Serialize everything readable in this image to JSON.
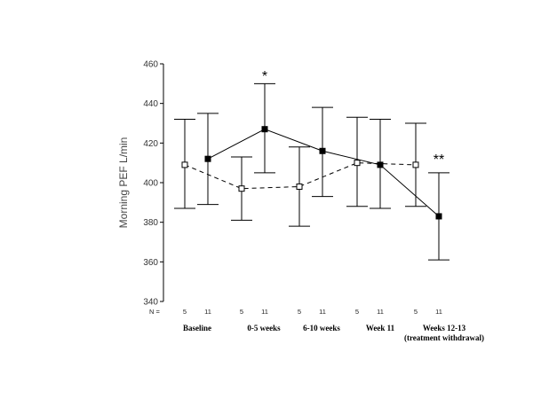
{
  "chart_data": {
    "type": "line",
    "title": "",
    "xlabel": "",
    "ylabel": "Morning PEF L/min",
    "ylim": [
      340,
      460
    ],
    "yticks": [
      "340",
      "360",
      "380",
      "400",
      "420",
      "440",
      "460"
    ],
    "grid": false,
    "n_row_label": "N =",
    "categories": [
      {
        "label": "Baseline",
        "sublabel": "",
        "n_open": "5",
        "n_filled": "11"
      },
      {
        "label": "0-5 weeks",
        "sublabel": "",
        "n_open": "5",
        "n_filled": "11"
      },
      {
        "label": "6-10 weeks",
        "sublabel": "",
        "n_open": "5",
        "n_filled": "11"
      },
      {
        "label": "Week 11",
        "sublabel": "",
        "n_open": "5",
        "n_filled": "11"
      },
      {
        "label": "Weeks 12-13",
        "sublabel": "(treatment withdrawal)",
        "n_open": "5",
        "n_filled": "11"
      }
    ],
    "series": [
      {
        "marker": "open-square",
        "line_style": "dashed",
        "values": [
          409,
          397,
          398,
          410,
          409
        ],
        "error_low": [
          387,
          381,
          378,
          388,
          388
        ],
        "error_high": [
          432,
          413,
          418,
          433,
          430
        ]
      },
      {
        "marker": "filled-square",
        "line_style": "solid",
        "values": [
          412,
          427,
          416,
          409,
          383
        ],
        "error_low": [
          389,
          405,
          393,
          387,
          361
        ],
        "error_high": [
          435,
          450,
          438,
          432,
          405
        ]
      }
    ],
    "annotations": [
      {
        "text": "*",
        "category_index": 1,
        "series_index": 1,
        "y": 455
      },
      {
        "text": "**",
        "category_index": 4,
        "series_index": 1,
        "y": 413
      }
    ]
  }
}
